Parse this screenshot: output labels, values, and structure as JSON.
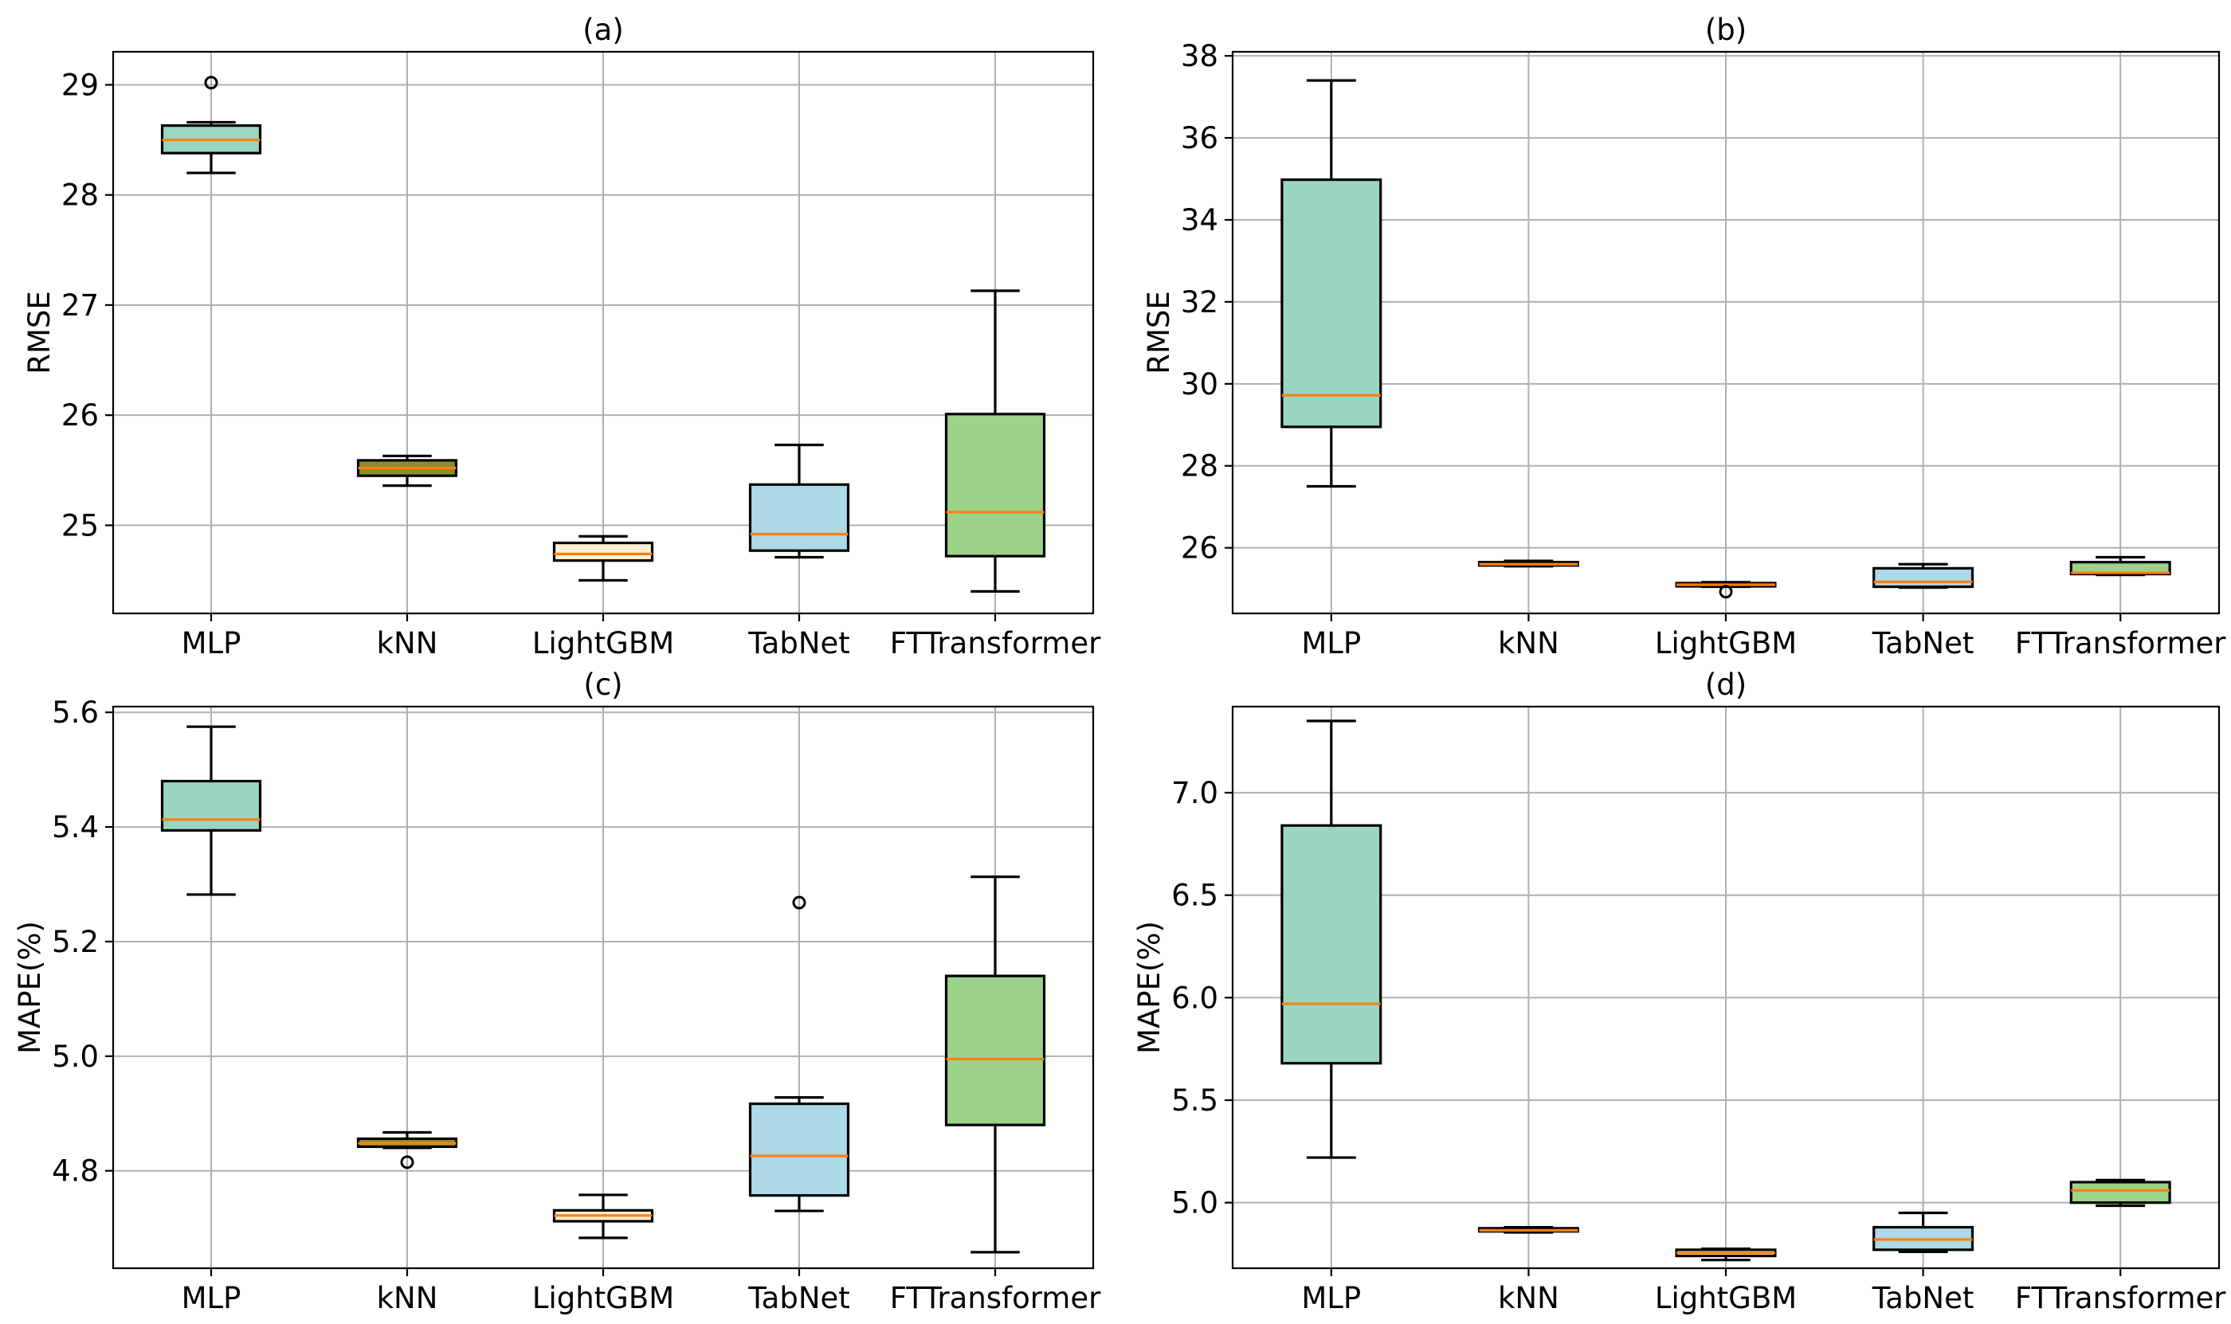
{
  "colors": {
    "MLP": "#9ad5c0",
    "kNN": "#8c8e2b",
    "LightGBM": "#fdf0d5",
    "TabNet": "#add8e6",
    "FTTransformer": "#9cd28a",
    "median": "#ff7f0e"
  },
  "chart_data": [
    {
      "type": "box",
      "title": "(a)",
      "xlabel": "",
      "ylabel": "RMSE",
      "ylim": [
        24.2,
        29.3
      ],
      "yticks": [
        25,
        26,
        27,
        28,
        29
      ],
      "ytick_labels": [
        "25",
        "26",
        "27",
        "28",
        "29"
      ],
      "grid": true,
      "categories": [
        "MLP",
        "kNN",
        "LightGBM",
        "TabNet",
        "FTTransformer"
      ],
      "series": [
        {
          "name": "MLP",
          "whislo": 28.2,
          "q1": 28.38,
          "med": 28.5,
          "q3": 28.63,
          "whishi": 28.66,
          "fliers": [
            29.02
          ]
        },
        {
          "name": "kNN",
          "whislo": 25.36,
          "q1": 25.45,
          "med": 25.52,
          "q3": 25.59,
          "whishi": 25.63,
          "fliers": []
        },
        {
          "name": "LightGBM",
          "whislo": 24.5,
          "q1": 24.68,
          "med": 24.74,
          "q3": 24.84,
          "whishi": 24.9,
          "fliers": []
        },
        {
          "name": "TabNet",
          "whislo": 24.71,
          "q1": 24.77,
          "med": 24.92,
          "q3": 25.37,
          "whishi": 25.73,
          "fliers": []
        },
        {
          "name": "FTTransformer",
          "whislo": 24.4,
          "q1": 24.72,
          "med": 25.12,
          "q3": 26.01,
          "whishi": 27.13,
          "fliers": []
        }
      ]
    },
    {
      "type": "box",
      "title": "(b)",
      "xlabel": "",
      "ylabel": "RMSE",
      "ylim": [
        24.4,
        38.1
      ],
      "yticks": [
        26,
        28,
        30,
        32,
        34,
        36,
        38
      ],
      "ytick_labels": [
        "26",
        "28",
        "30",
        "32",
        "34",
        "36",
        "38"
      ],
      "grid": true,
      "categories": [
        "MLP",
        "kNN",
        "LightGBM",
        "TabNet",
        "FTTransformer"
      ],
      "series": [
        {
          "name": "MLP",
          "whislo": 27.5,
          "q1": 28.95,
          "med": 29.72,
          "q3": 34.98,
          "whishi": 37.4,
          "fliers": []
        },
        {
          "name": "kNN",
          "whislo": 25.55,
          "q1": 25.57,
          "med": 25.6,
          "q3": 25.65,
          "whishi": 25.68,
          "fliers": []
        },
        {
          "name": "LightGBM",
          "whislo": 25.05,
          "q1": 25.06,
          "med": 25.1,
          "q3": 25.14,
          "whishi": 25.16,
          "fliers": [
            24.93
          ]
        },
        {
          "name": "TabNet",
          "whislo": 25.03,
          "q1": 25.05,
          "med": 25.17,
          "q3": 25.5,
          "whishi": 25.6,
          "fliers": []
        },
        {
          "name": "FTTransformer",
          "whislo": 25.34,
          "q1": 25.36,
          "med": 25.39,
          "q3": 25.65,
          "whishi": 25.77,
          "fliers": []
        }
      ]
    },
    {
      "type": "box",
      "title": "(c)",
      "xlabel": "",
      "ylabel": "MAPE(%)",
      "ylim": [
        4.63,
        5.61
      ],
      "yticks": [
        4.8,
        5.0,
        5.2,
        5.4,
        5.6
      ],
      "ytick_labels": [
        "4.8",
        "5.0",
        "5.2",
        "5.4",
        "5.6"
      ],
      "grid": true,
      "categories": [
        "MLP",
        "kNN",
        "LightGBM",
        "TabNet",
        "FTTransformer"
      ],
      "series": [
        {
          "name": "MLP",
          "whislo": 5.282,
          "q1": 5.394,
          "med": 5.413,
          "q3": 5.48,
          "whishi": 5.575,
          "fliers": []
        },
        {
          "name": "kNN",
          "whislo": 4.84,
          "q1": 4.842,
          "med": 4.848,
          "q3": 4.856,
          "whishi": 4.867,
          "fliers": [
            4.815
          ]
        },
        {
          "name": "LightGBM",
          "whislo": 4.683,
          "q1": 4.712,
          "med": 4.722,
          "q3": 4.731,
          "whishi": 4.758,
          "fliers": []
        },
        {
          "name": "TabNet",
          "whislo": 4.73,
          "q1": 4.757,
          "med": 4.826,
          "q3": 4.917,
          "whishi": 4.928,
          "fliers": [
            5.268
          ]
        },
        {
          "name": "FTTransformer",
          "whislo": 4.658,
          "q1": 4.88,
          "med": 4.995,
          "q3": 5.14,
          "whishi": 5.313,
          "fliers": []
        }
      ]
    },
    {
      "type": "box",
      "title": "(d)",
      "xlabel": "",
      "ylabel": "MAPE(%)",
      "ylim": [
        4.68,
        7.42
      ],
      "yticks": [
        5.0,
        5.5,
        6.0,
        6.5,
        7.0
      ],
      "ytick_labels": [
        "5.0",
        "5.5",
        "6.0",
        "6.5",
        "7.0"
      ],
      "grid": true,
      "categories": [
        "MLP",
        "kNN",
        "LightGBM",
        "TabNet",
        "FTTransformer"
      ],
      "series": [
        {
          "name": "MLP",
          "whislo": 5.22,
          "q1": 5.68,
          "med": 5.97,
          "q3": 6.84,
          "whishi": 7.35,
          "fliers": []
        },
        {
          "name": "kNN",
          "whislo": 4.855,
          "q1": 4.86,
          "med": 4.865,
          "q3": 4.875,
          "whishi": 4.88,
          "fliers": []
        },
        {
          "name": "LightGBM",
          "whislo": 4.72,
          "q1": 4.74,
          "med": 4.755,
          "q3": 4.77,
          "whishi": 4.775,
          "fliers": []
        },
        {
          "name": "TabNet",
          "whislo": 4.76,
          "q1": 4.77,
          "med": 4.82,
          "q3": 4.88,
          "whishi": 4.95,
          "fliers": []
        },
        {
          "name": "FTTransformer",
          "whislo": 4.985,
          "q1": 5.0,
          "med": 5.06,
          "q3": 5.1,
          "whishi": 5.11,
          "fliers": []
        }
      ]
    }
  ]
}
